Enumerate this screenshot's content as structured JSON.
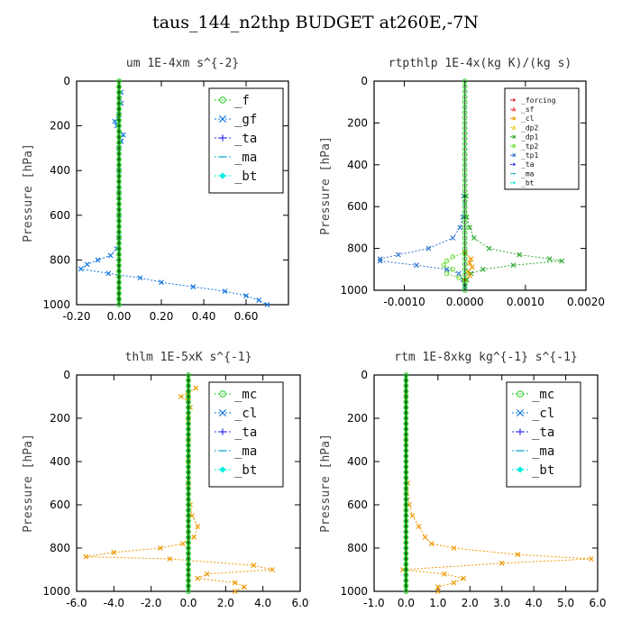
{
  "title": "taus_144_n2thp  BUDGET at260E,-7N",
  "colors": {
    "_f": "#22cc22",
    "_gf": "#1177dd",
    "_ta": "#3333ee",
    "_ma": "#22aacc",
    "_bt": "#00eedd",
    "_forcing": "#dd1111",
    "_sf": "#ee4444",
    "_cl": "#ee9900",
    "_dp2": "#eecc22",
    "_dp1": "#33aa33",
    "_tp2": "#66dd33",
    "_tp1": "#3377cc",
    "_mc": "#22cc22",
    "_clb": "#1177dd"
  },
  "chart_data": [
    {
      "type": "line",
      "title": "um   1E-4xm s^{-2}",
      "ylabel": "Pressure [hPa]",
      "xlim": [
        -0.2,
        0.8
      ],
      "ylim": [
        1000,
        0
      ],
      "xticks": [
        "-0.20",
        "0.00",
        "0.20",
        "0.40",
        "0.60"
      ],
      "xtick_values": [
        -0.2,
        0,
        0.2,
        0.4,
        0.6
      ],
      "yticks": [
        "0",
        "200",
        "400",
        "600",
        "800",
        "1000"
      ],
      "ytick_values": [
        0,
        200,
        400,
        600,
        800,
        1000
      ],
      "legend_position": "top-right",
      "legend": [
        "_f",
        "_gf",
        "_ta",
        "_ma",
        "_bt"
      ],
      "series": [
        {
          "name": "_gf",
          "y": [
            50,
            100,
            150,
            180,
            200,
            240,
            270,
            300,
            400,
            500,
            600,
            700,
            750,
            780,
            800,
            820,
            840,
            860,
            880,
            900,
            920,
            940,
            960,
            980,
            1000
          ],
          "x": [
            0.01,
            0.01,
            0.0,
            -0.02,
            -0.01,
            0.02,
            0.01,
            0.0,
            0.0,
            0.0,
            0.0,
            0.0,
            -0.01,
            -0.04,
            -0.1,
            -0.15,
            -0.18,
            -0.05,
            0.1,
            0.2,
            0.35,
            0.5,
            0.6,
            0.66,
            0.7
          ]
        },
        {
          "name": "_f",
          "y": [
            0,
            1000
          ],
          "x": [
            0,
            0
          ]
        },
        {
          "name": "_bt",
          "y": [
            0,
            1000
          ],
          "x": [
            0,
            0
          ]
        }
      ]
    },
    {
      "type": "line",
      "title": "rtpthlp  1E-4x(kg K)/(kg s)",
      "ylabel": "Pressure [hPa]",
      "xlim": [
        -0.0015,
        0.002
      ],
      "ylim": [
        1000,
        0
      ],
      "xticks": [
        "-0.0010",
        "0.0000",
        "0.0010",
        "0.0020"
      ],
      "xtick_values": [
        -0.001,
        0,
        0.001,
        0.002
      ],
      "yticks": [
        "0",
        "200",
        "400",
        "600",
        "800",
        "1000"
      ],
      "ytick_values": [
        0,
        200,
        400,
        600,
        800,
        1000
      ],
      "legend_position": "top-right",
      "legend": [
        "_forcing",
        "_sf",
        "_cl",
        "_dp2",
        "_dp1",
        "_tp2",
        "_tp1",
        "_ta",
        "_ma",
        "_bt"
      ],
      "series": [
        {
          "name": "_dp1",
          "y": [
            550,
            650,
            700,
            750,
            800,
            830,
            850,
            860,
            880,
            900,
            920,
            950,
            980
          ],
          "x": [
            2e-05,
            3e-05,
            8e-05,
            0.00015,
            0.0004,
            0.0009,
            0.0014,
            0.0016,
            0.0008,
            0.0003,
            0.0001,
            3e-05,
            0.0
          ]
        },
        {
          "name": "_tp1",
          "y": [
            550,
            650,
            700,
            750,
            800,
            830,
            850,
            860,
            880,
            900,
            920,
            950,
            980
          ],
          "x": [
            -2e-05,
            -3e-05,
            -8e-05,
            -0.0002,
            -0.0006,
            -0.0011,
            -0.0014,
            -0.0014,
            -0.0008,
            -0.0003,
            -0.0001,
            -3e-05,
            0.0
          ]
        },
        {
          "name": "_tp2",
          "y": [
            820,
            840,
            860,
            880,
            900,
            920,
            940,
            960
          ],
          "x": [
            0.0,
            -0.0002,
            -0.0003,
            -0.00035,
            -0.0002,
            -0.0003,
            -0.0001,
            0.0
          ]
        },
        {
          "name": "_cl",
          "y": [
            820,
            850,
            870,
            890,
            910,
            930,
            950
          ],
          "x": [
            0.0,
            0.0001,
            8e-05,
            0.00012,
            5e-05,
            8e-05,
            0.0
          ]
        },
        {
          "name": "_forcing",
          "y": [
            0,
            1000
          ],
          "x": [
            0,
            0
          ]
        }
      ]
    },
    {
      "type": "line",
      "title": "thlm  1E-5xK s^{-1}",
      "ylabel": "Pressure [hPa]",
      "xlim": [
        -6,
        6
      ],
      "ylim": [
        1000,
        0
      ],
      "xticks": [
        "-6.0",
        "-4.0",
        "-2.0",
        "0.0",
        "2.0",
        "4.0",
        "6.0"
      ],
      "xtick_values": [
        -6,
        -4,
        -2,
        0,
        2,
        4,
        6
      ],
      "yticks": [
        "0",
        "200",
        "400",
        "600",
        "800",
        "1000"
      ],
      "ytick_values": [
        0,
        200,
        400,
        600,
        800,
        1000
      ],
      "legend_position": "top-right",
      "legend": [
        "_mc",
        "_cl",
        "_ta",
        "_ma",
        "_bt"
      ],
      "series": [
        {
          "name": "_cl",
          "y": [
            60,
            80,
            100,
            120,
            150,
            200,
            300,
            400,
            500,
            600,
            650,
            700,
            750,
            780,
            800,
            820,
            840,
            850,
            880,
            900,
            920,
            940,
            960,
            980,
            1000
          ],
          "x": [
            0.4,
            0.0,
            -0.4,
            0.0,
            0.1,
            0.0,
            0.0,
            0.0,
            0.0,
            0.1,
            0.2,
            0.5,
            0.3,
            -0.3,
            -1.5,
            -4.0,
            -5.5,
            -1.0,
            3.5,
            4.5,
            1.0,
            0.5,
            2.5,
            3.0,
            2.5
          ]
        },
        {
          "name": "_mc",
          "y": [
            0,
            1000
          ],
          "x": [
            0,
            0
          ]
        },
        {
          "name": "_bt",
          "y": [
            0,
            1000
          ],
          "x": [
            0,
            0
          ]
        }
      ]
    },
    {
      "type": "line",
      "title": "rtm   1E-8xkg kg^{-1} s^{-1}",
      "ylabel": "Pressure [hPa]",
      "xlim": [
        -1,
        6
      ],
      "ylim": [
        1000,
        0
      ],
      "xticks": [
        "-1.0",
        "0.0",
        "1.0",
        "2.0",
        "3.0",
        "4.0",
        "5.0",
        "6.0"
      ],
      "xtick_values": [
        -1,
        0,
        1,
        2,
        3,
        4,
        5,
        6
      ],
      "yticks": [
        "0",
        "200",
        "400",
        "600",
        "800",
        "1000"
      ],
      "ytick_values": [
        0,
        200,
        400,
        600,
        800,
        1000
      ],
      "legend_position": "top-right",
      "legend": [
        "_mc",
        "_cl",
        "_ta",
        "_ma",
        "_bt"
      ],
      "series": [
        {
          "name": "_cl",
          "y": [
            100,
            300,
            500,
            600,
            650,
            700,
            750,
            780,
            800,
            830,
            850,
            870,
            900,
            920,
            940,
            960,
            980,
            1000
          ],
          "x": [
            0.0,
            0.0,
            0.05,
            0.1,
            0.2,
            0.4,
            0.6,
            0.8,
            1.5,
            3.5,
            5.8,
            3.0,
            -0.1,
            1.2,
            1.8,
            1.5,
            1.0,
            1.0
          ]
        },
        {
          "name": "_mc",
          "y": [
            0,
            1000
          ],
          "x": [
            0,
            0
          ]
        },
        {
          "name": "_bt",
          "y": [
            0,
            1000
          ],
          "x": [
            0,
            0
          ]
        }
      ]
    }
  ]
}
